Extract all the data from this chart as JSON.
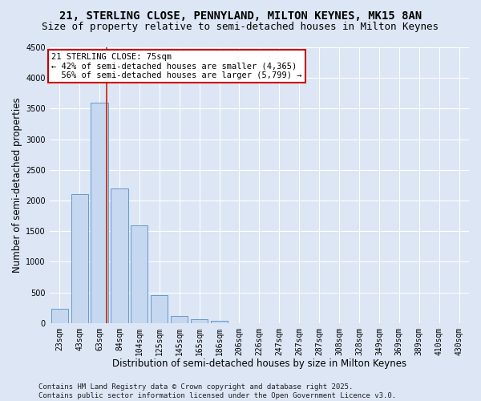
{
  "title_line1": "21, STERLING CLOSE, PENNYLAND, MILTON KEYNES, MK15 8AN",
  "title_line2": "Size of property relative to semi-detached houses in Milton Keynes",
  "xlabel": "Distribution of semi-detached houses by size in Milton Keynes",
  "ylabel": "Number of semi-detached properties",
  "footer": "Contains HM Land Registry data © Crown copyright and database right 2025.\nContains public sector information licensed under the Open Government Licence v3.0.",
  "categories": [
    "23sqm",
    "43sqm",
    "63sqm",
    "84sqm",
    "104sqm",
    "125sqm",
    "145sqm",
    "165sqm",
    "186sqm",
    "206sqm",
    "226sqm",
    "247sqm",
    "267sqm",
    "287sqm",
    "308sqm",
    "328sqm",
    "349sqm",
    "369sqm",
    "389sqm",
    "410sqm",
    "430sqm"
  ],
  "values": [
    230,
    2100,
    3600,
    2200,
    1600,
    460,
    110,
    60,
    30,
    0,
    0,
    0,
    0,
    0,
    0,
    0,
    0,
    0,
    0,
    0,
    0
  ],
  "bar_color": "#c5d8f0",
  "bar_edge_color": "#6699cc",
  "background_color": "#dce6f5",
  "grid_color": "#ffffff",
  "annotation_text": "21 STERLING CLOSE: 75sqm\n← 42% of semi-detached houses are smaller (4,365)\n  56% of semi-detached houses are larger (5,799) →",
  "annotation_box_color": "#ffffff",
  "annotation_box_edge": "#cc0000",
  "red_line_color": "#cc2200",
  "red_line_x": 2.35,
  "ylim": [
    0,
    4500
  ],
  "yticks": [
    0,
    500,
    1000,
    1500,
    2000,
    2500,
    3000,
    3500,
    4000,
    4500
  ],
  "title_fontsize": 10,
  "subtitle_fontsize": 9,
  "axis_fontsize": 8.5,
  "tick_fontsize": 7,
  "footer_fontsize": 6.5,
  "annot_fontsize": 7.5
}
